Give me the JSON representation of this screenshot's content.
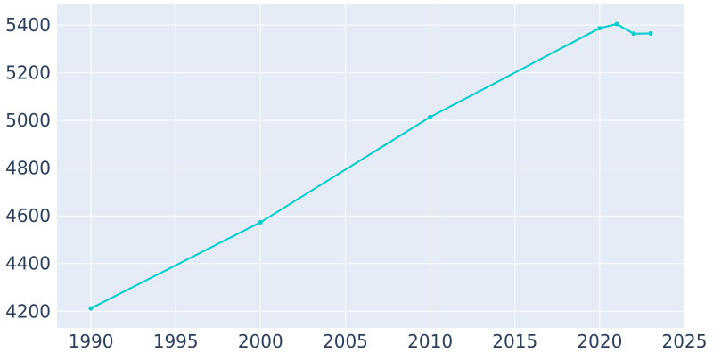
{
  "chart_data": {
    "type": "line",
    "title": "",
    "xlabel": "",
    "ylabel": "",
    "xlim": [
      1988,
      2025
    ],
    "ylim": [
      4130,
      5490
    ],
    "x_ticks": [
      1990,
      1995,
      2000,
      2005,
      2010,
      2015,
      2020,
      2025
    ],
    "y_ticks": [
      4200,
      4400,
      4600,
      4800,
      5000,
      5200,
      5400
    ],
    "x_tick_labels": [
      "1990",
      "1995",
      "2000",
      "2005",
      "2010",
      "2015",
      "2020",
      "2025"
    ],
    "y_tick_labels": [
      "4200",
      "4400",
      "4600",
      "4800",
      "5000",
      "5200",
      "5400"
    ],
    "grid": true,
    "series": [
      {
        "x": [
          1990,
          2000,
          2010,
          2020,
          2021,
          2022,
          2023
        ],
        "y": [
          4212,
          4573,
          5014,
          5387,
          5404,
          5364,
          5365
        ]
      }
    ],
    "colors": {
      "plot_background": "#e5ecf6",
      "grid": "#ffffff",
      "line": "#00cccc",
      "tick_text": "#2a3f5f"
    }
  }
}
